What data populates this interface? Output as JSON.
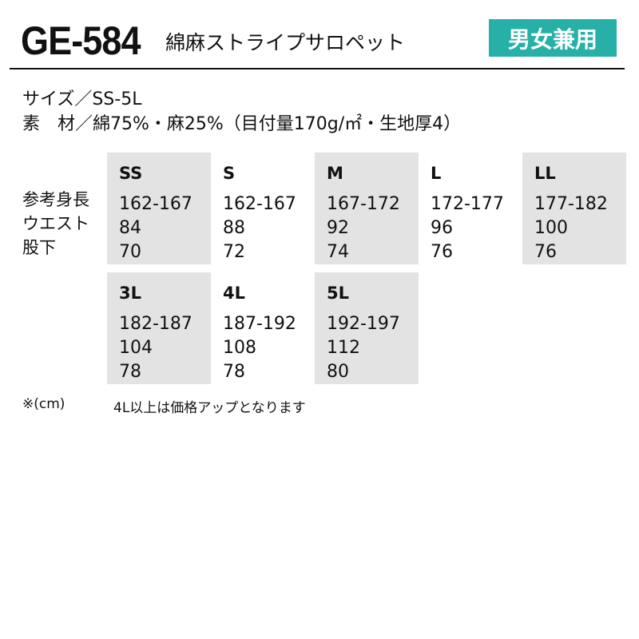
{
  "header": {
    "code": "GE-584",
    "name": "綿麻ストライプサロペット",
    "badge": "男女兼用",
    "badge_color": "#27b0a8"
  },
  "specs": {
    "size": "サイズ／SS-5L",
    "material": "素　材／綿75%・麻25%（目付量170g/㎡・生地厚4）"
  },
  "row_labels": [
    "参考身長",
    "ウエスト",
    "股下"
  ],
  "sizes": [
    {
      "size": "SS",
      "height": "162-167",
      "waist": "84",
      "inseam": "70"
    },
    {
      "size": "S",
      "height": "162-167",
      "waist": "88",
      "inseam": "72"
    },
    {
      "size": "M",
      "height": "167-172",
      "waist": "92",
      "inseam": "74"
    },
    {
      "size": "L",
      "height": "172-177",
      "waist": "96",
      "inseam": "76"
    },
    {
      "size": "LL",
      "height": "177-182",
      "waist": "100",
      "inseam": "76"
    },
    {
      "size": "3L",
      "height": "182-187",
      "waist": "104",
      "inseam": "78"
    },
    {
      "size": "4L",
      "height": "187-192",
      "waist": "108",
      "inseam": "78"
    },
    {
      "size": "5L",
      "height": "192-197",
      "waist": "112",
      "inseam": "80"
    }
  ],
  "notes": {
    "unit": "※(cm)",
    "surcharge": "4L以上は価格アップとなります"
  }
}
